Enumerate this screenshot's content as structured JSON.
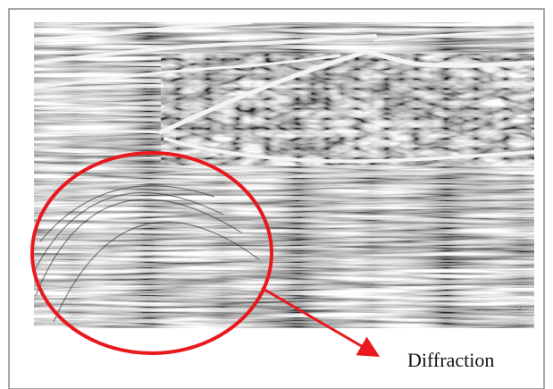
{
  "annotation": {
    "label": "Diffraction"
  }
}
